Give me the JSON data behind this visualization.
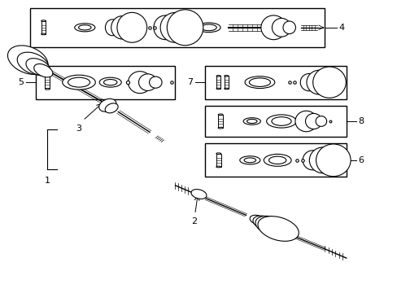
{
  "bg_color": "#ffffff",
  "line_color": "#000000",
  "fig_width": 4.89,
  "fig_height": 3.6,
  "dpi": 100,
  "boxes": {
    "4": [
      0.07,
      0.845,
      0.75,
      0.135
    ],
    "5": [
      0.085,
      0.665,
      0.355,
      0.115
    ],
    "7": [
      0.515,
      0.665,
      0.36,
      0.115
    ],
    "8": [
      0.515,
      0.535,
      0.36,
      0.105
    ],
    "6": [
      0.515,
      0.395,
      0.36,
      0.115
    ]
  }
}
